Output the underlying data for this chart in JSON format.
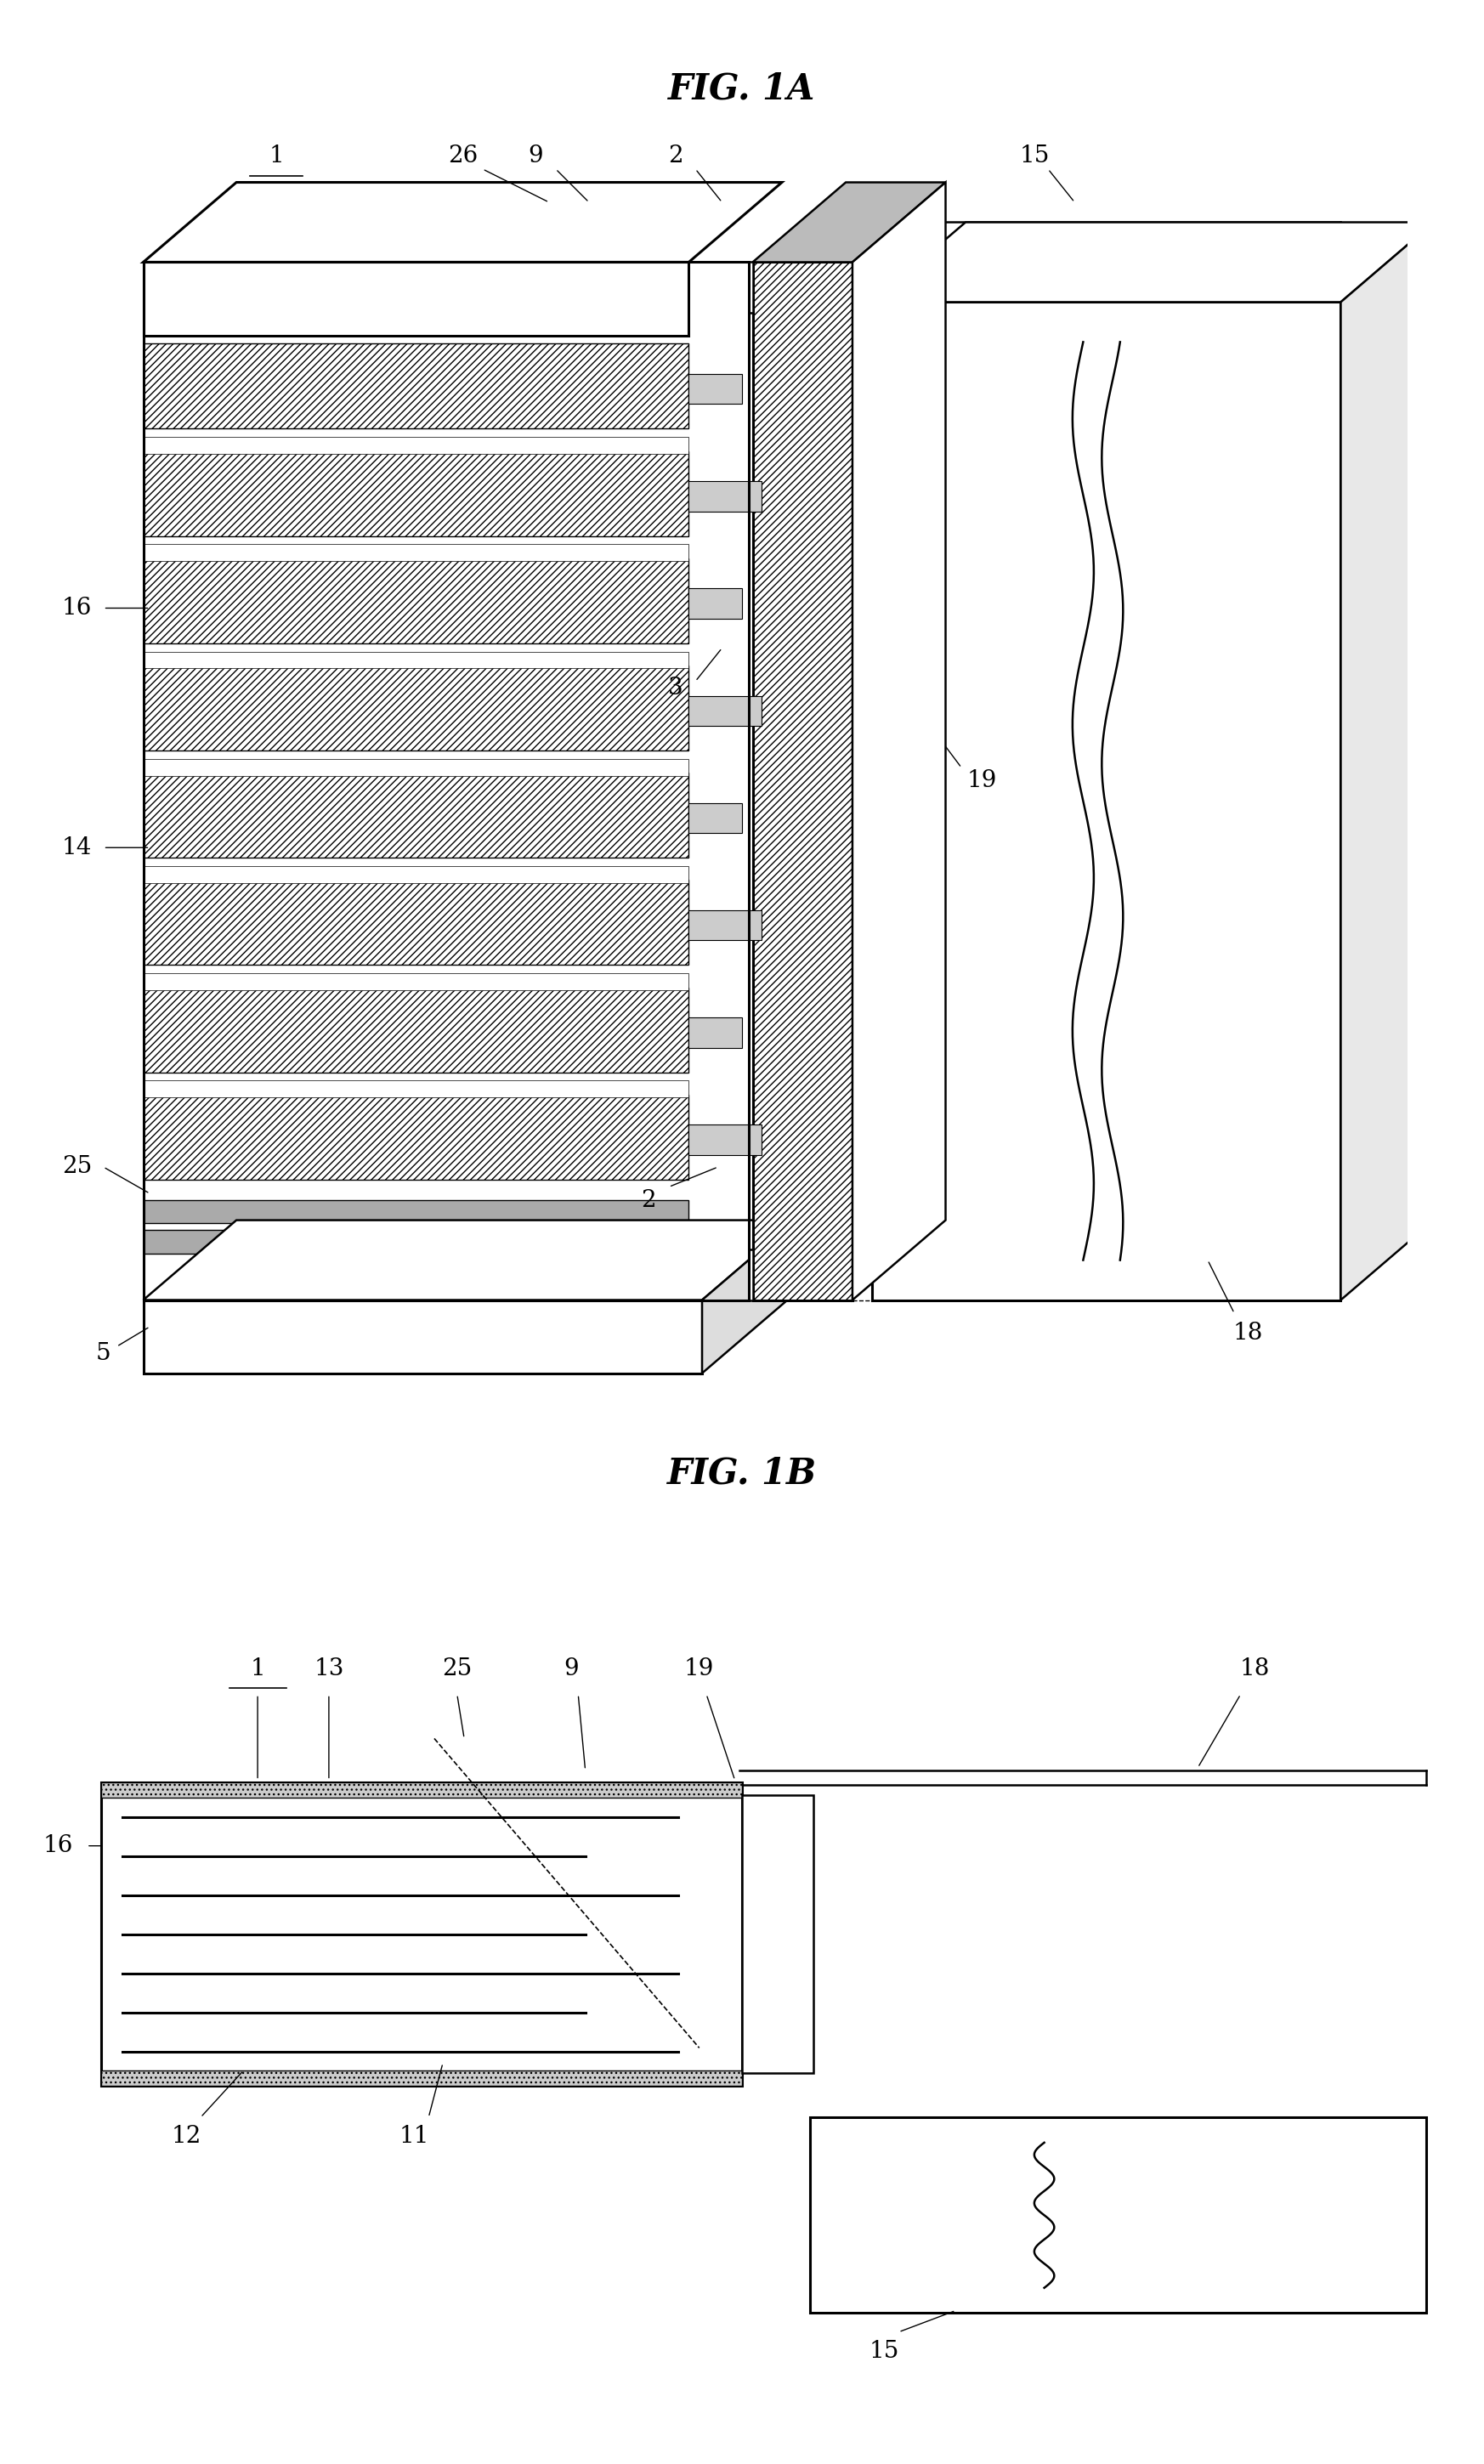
{
  "fig1a_title": "FIG. 1A",
  "fig1b_title": "FIG. 1B",
  "background": "#ffffff",
  "black": "#000000",
  "gray_dark": "#444444",
  "gray_mid": "#888888",
  "gray_light": "#bbbbbb",
  "title_fs": 30,
  "label_fs": 20,
  "lw": 1.8,
  "lw_thick": 2.2
}
